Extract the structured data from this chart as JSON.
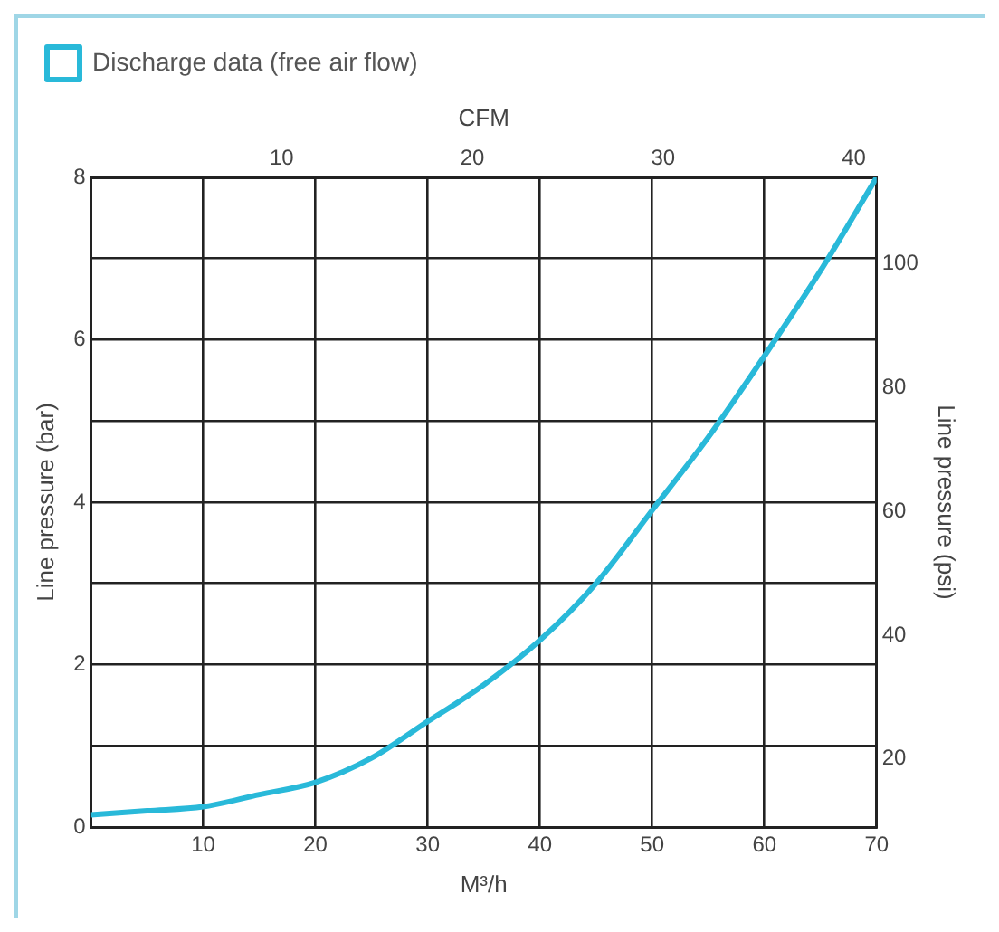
{
  "chart_data": {
    "type": "line",
    "xlabel": "M³/h",
    "ylabel": "Line pressure (bar)",
    "y2label": "Line pressure (psi)",
    "x2label": "CFM",
    "series": [
      {
        "name": "Discharge data (free air flow)",
        "color": "#29b9d9",
        "x": [
          0,
          5,
          10,
          15,
          20,
          25,
          30,
          35,
          40,
          45,
          50,
          55,
          60,
          65,
          70
        ],
        "values": [
          0.15,
          0.2,
          0.25,
          0.4,
          0.55,
          0.85,
          1.3,
          1.75,
          2.3,
          3.0,
          3.9,
          4.8,
          5.8,
          6.85,
          8.0
        ]
      }
    ],
    "xlim": [
      0,
      70
    ],
    "xticks": [
      {
        "value": 0,
        "label": null
      },
      10,
      20,
      30,
      40,
      50,
      60,
      70
    ],
    "ylim": [
      0,
      8
    ],
    "yticks": [
      0,
      {
        "value": 1,
        "label": null
      },
      2,
      {
        "value": 3,
        "label": null
      },
      4,
      {
        "value": 5,
        "label": null
      },
      6,
      {
        "value": 7,
        "label": null
      },
      8
    ],
    "x2lim": [
      0,
      41.2
    ],
    "x2ticks": [
      10,
      20,
      30,
      40
    ],
    "y2lim": [
      9,
      114
    ],
    "y2ticks": [
      20,
      40,
      60,
      80,
      100
    ],
    "grid": true,
    "legend": "top left",
    "marker": "none",
    "line_style": "solid"
  }
}
